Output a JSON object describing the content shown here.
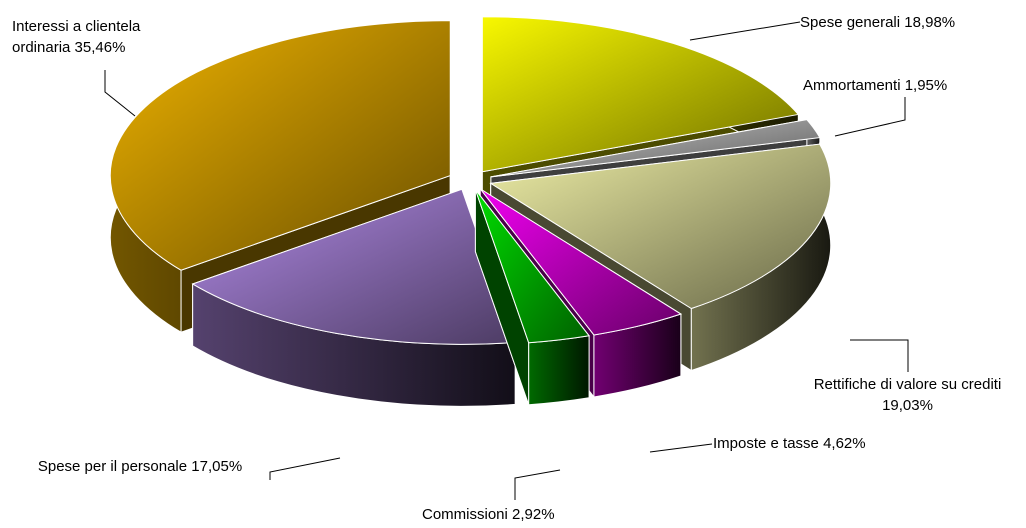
{
  "chart_data": {
    "type": "pie",
    "categories": [
      "Spese generali",
      "Ammortamenti",
      "Rettifiche di valore su crediti",
      "Imposte e tasse",
      "Commissioni",
      "Spese per il personale",
      "Interessi a clientela ordinaria"
    ],
    "values": [
      18.98,
      1.95,
      19.03,
      4.62,
      2.92,
      17.05,
      35.46
    ],
    "value_labels": [
      "18,98%",
      "1,95%",
      "19,03%",
      "4,62%",
      "2,92%",
      "17,05%",
      "35,46%"
    ],
    "colors": [
      "#d8d800",
      "#b0b0b0",
      "#d0d090",
      "#d000d0",
      "#00c000",
      "#9a78c8",
      "#d09c00"
    ]
  }
}
